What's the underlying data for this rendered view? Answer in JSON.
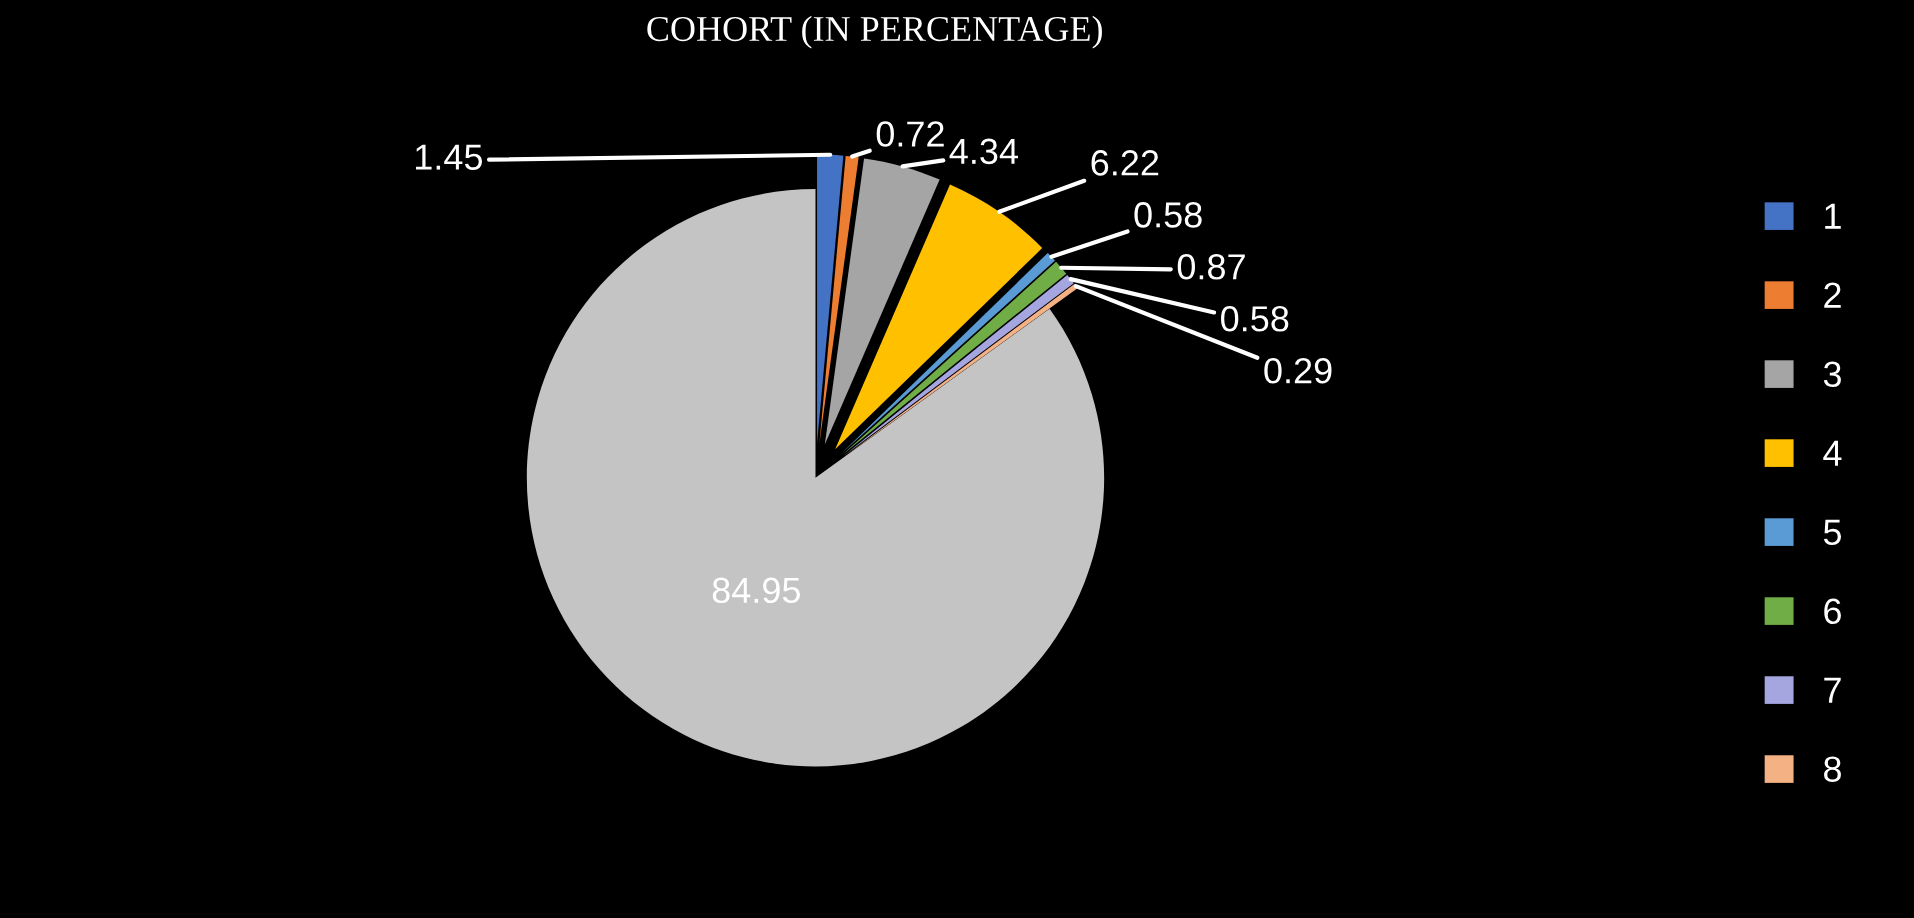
{
  "chart_data": {
    "type": "pie",
    "title": "COHORT (IN PERCENTAGE)",
    "categories": [
      "1",
      "2",
      "3",
      "4",
      "5",
      "6",
      "7",
      "8",
      null
    ],
    "values": [
      1.45,
      0.72,
      4.34,
      6.22,
      0.58,
      0.87,
      0.58,
      0.29,
      84.95
    ],
    "colors": [
      "#4472c4",
      "#ed7d31",
      "#a5a5a5",
      "#ffc000",
      "#5b9bd5",
      "#70ad47",
      "#a5a5e0",
      "#f4b183",
      "#c4c4c4"
    ],
    "data_labels": true,
    "legend": "right"
  }
}
